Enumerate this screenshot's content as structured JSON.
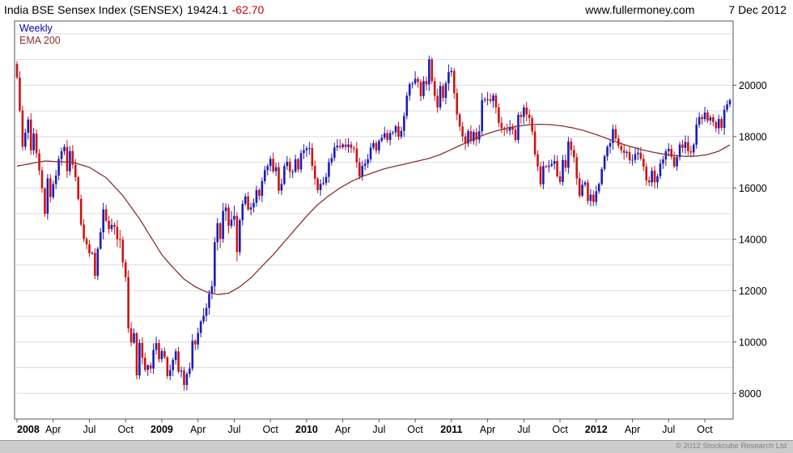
{
  "header": {
    "title": "India BSE Sensex Index (SENSEX)",
    "last_value": "19424.1",
    "change": "-62.70",
    "website": "www.fullermoney.com",
    "date": "7 Dec 2012"
  },
  "legend": {
    "series1": "Weekly",
    "series2": "EMA 200"
  },
  "footer": {
    "copyright": "© 2012 Stockcube Research Ltd"
  },
  "colors": {
    "up": "#1c1cb8",
    "down": "#cc1414",
    "ema": "#8b3030",
    "grid": "#dcdcdc",
    "border": "#555555",
    "text": "#000000"
  },
  "chart_data": {
    "type": "candlestick",
    "title": "India BSE Sensex Index (SENSEX)",
    "frequency": "Weekly",
    "overlay": "EMA 200",
    "legend_position": "top-left",
    "grid": "horizontal-only",
    "ylim": [
      7000,
      22500
    ],
    "y_ticks": [
      8000,
      10000,
      12000,
      14000,
      16000,
      18000,
      20000
    ],
    "y_grid_step": 1000,
    "x_labels": [
      {
        "label": "2008",
        "index": 0,
        "bold": true
      },
      {
        "label": "Apr",
        "index": 13
      },
      {
        "label": "Jul",
        "index": 26
      },
      {
        "label": "Oct",
        "index": 39
      },
      {
        "label": "2009",
        "index": 52,
        "bold": true
      },
      {
        "label": "Apr",
        "index": 65
      },
      {
        "label": "Jul",
        "index": 78
      },
      {
        "label": "Oct",
        "index": 91
      },
      {
        "label": "2010",
        "index": 104,
        "bold": true
      },
      {
        "label": "Apr",
        "index": 117
      },
      {
        "label": "Jul",
        "index": 130
      },
      {
        "label": "Oct",
        "index": 143
      },
      {
        "label": "2011",
        "index": 156,
        "bold": true
      },
      {
        "label": "Apr",
        "index": 169
      },
      {
        "label": "Jul",
        "index": 182
      },
      {
        "label": "Oct",
        "index": 195
      },
      {
        "label": "2012",
        "index": 208,
        "bold": true
      },
      {
        "label": "Apr",
        "index": 221
      },
      {
        "label": "Jul",
        "index": 234
      },
      {
        "label": "Oct",
        "index": 247
      }
    ],
    "open_seed": 20827,
    "weekly_close": [
      20300,
      19014,
      17605,
      18152,
      18663,
      17466,
      18115,
      17349,
      16677,
      15976,
      14995,
      16371,
      15644,
      16153,
      16481,
      17125,
      17430,
      17600,
      16649,
      17434,
      16906,
      16415,
      15572,
      14571,
      14016,
      13802,
      13454,
      13469,
      12576,
      13635,
      14274,
      15168,
      14724,
      14401,
      14564,
      14483,
      14001,
      13978,
      13102,
      12526,
      10527,
      9975,
      10337,
      8701,
      9964,
      9385,
      8915,
      9093,
      8965,
      9690,
      9958,
      9329,
      9647,
      9407,
      8674,
      8902,
      9301,
      9635,
      8844,
      8891,
      8326,
      8757,
      8966,
      10049,
      9902,
      10349,
      10804,
      11023,
      11329,
      11876,
      12174,
      13887,
      14625,
      14017,
      15104,
      15238,
      14522,
      14765,
      14913,
      13504,
      14745,
      15379,
      15670,
      15160,
      15241,
      15422,
      15922,
      15689,
      16264,
      16693,
      16853,
      17135,
      16643,
      16810,
      15896,
      16158,
      16848,
      17021,
      16632,
      16633,
      17119,
      16719,
      17361,
      17465,
      17540,
      17554,
      16860,
      16358,
      15916,
      16152,
      16192,
      16430,
      16994,
      17167,
      17578,
      17645,
      17590,
      17693,
      17591,
      17694,
      17559,
      17536,
      16994,
      16445,
      16863,
      16945,
      17117,
      17571,
      17749,
      17461,
      17834,
      17956,
      18131,
      17868,
      18144,
      18167,
      18402,
      17998,
      18221,
      18800,
      19595,
      20045,
      20069,
      20250,
      20125,
      19576,
      20165,
      20032,
      21005,
      20157,
      19585,
      19136,
      19967,
      19509,
      20074,
      20509,
      20561,
      19692,
      18860,
      18396,
      18008,
      17729,
      18212,
      17823,
      18174,
      17879,
      18206,
      19420,
      19445,
      19451,
      19386,
      19602,
      19136,
      18529,
      18326,
      18266,
      18232,
      18376,
      18268,
      17871,
      18846,
      18763,
      19132,
      18858,
      18722,
      18197,
      17306,
      16840,
      16142,
      16848,
      16821,
      16867,
      16934,
      17050,
      16454,
      16232,
      17083,
      16786,
      17805,
      17481,
      17193,
      16372,
      15696,
      16123,
      16213,
      15491,
      15739,
      15455,
      15868,
      16154,
      16739,
      17234,
      17605,
      17749,
      18289,
      17924,
      17636,
      17466,
      17362,
      17404,
      17079,
      17094,
      17319,
      17374,
      17134,
      16831,
      16293,
      16218,
      16668,
      16218,
      16454,
      16950,
      17107,
      17430,
      17521,
      17214,
      16839,
      17198,
      17691,
      17558,
      17784,
      17429,
      17381,
      17684,
      18465,
      18763,
      18678,
      18938,
      18625,
      18755,
      18562,
      18323,
      18684,
      18339,
      19045,
      19255,
      19424.1
    ],
    "ema_anchors": [
      [
        0,
        16850
      ],
      [
        10,
        17050
      ],
      [
        20,
        17000
      ],
      [
        26,
        16800
      ],
      [
        32,
        16400
      ],
      [
        38,
        15700
      ],
      [
        44,
        14800
      ],
      [
        48,
        14100
      ],
      [
        52,
        13400
      ],
      [
        56,
        12900
      ],
      [
        60,
        12450
      ],
      [
        64,
        12150
      ],
      [
        68,
        11950
      ],
      [
        72,
        11850
      ],
      [
        76,
        11900
      ],
      [
        80,
        12150
      ],
      [
        84,
        12500
      ],
      [
        88,
        12950
      ],
      [
        92,
        13400
      ],
      [
        96,
        13900
      ],
      [
        100,
        14400
      ],
      [
        104,
        14900
      ],
      [
        108,
        15350
      ],
      [
        112,
        15700
      ],
      [
        116,
        16000
      ],
      [
        120,
        16250
      ],
      [
        124,
        16450
      ],
      [
        128,
        16600
      ],
      [
        132,
        16750
      ],
      [
        136,
        16850
      ],
      [
        140,
        16950
      ],
      [
        144,
        17050
      ],
      [
        148,
        17150
      ],
      [
        152,
        17300
      ],
      [
        156,
        17500
      ],
      [
        160,
        17700
      ],
      [
        164,
        17900
      ],
      [
        168,
        18080
      ],
      [
        172,
        18220
      ],
      [
        176,
        18330
      ],
      [
        180,
        18410
      ],
      [
        184,
        18460
      ],
      [
        188,
        18480
      ],
      [
        192,
        18460
      ],
      [
        196,
        18410
      ],
      [
        200,
        18330
      ],
      [
        204,
        18220
      ],
      [
        208,
        18080
      ],
      [
        212,
        17920
      ],
      [
        216,
        17760
      ],
      [
        220,
        17620
      ],
      [
        224,
        17500
      ],
      [
        228,
        17400
      ],
      [
        232,
        17320
      ],
      [
        236,
        17260
      ],
      [
        240,
        17230
      ],
      [
        244,
        17240
      ],
      [
        248,
        17300
      ],
      [
        252,
        17430
      ],
      [
        256,
        17680
      ]
    ]
  }
}
